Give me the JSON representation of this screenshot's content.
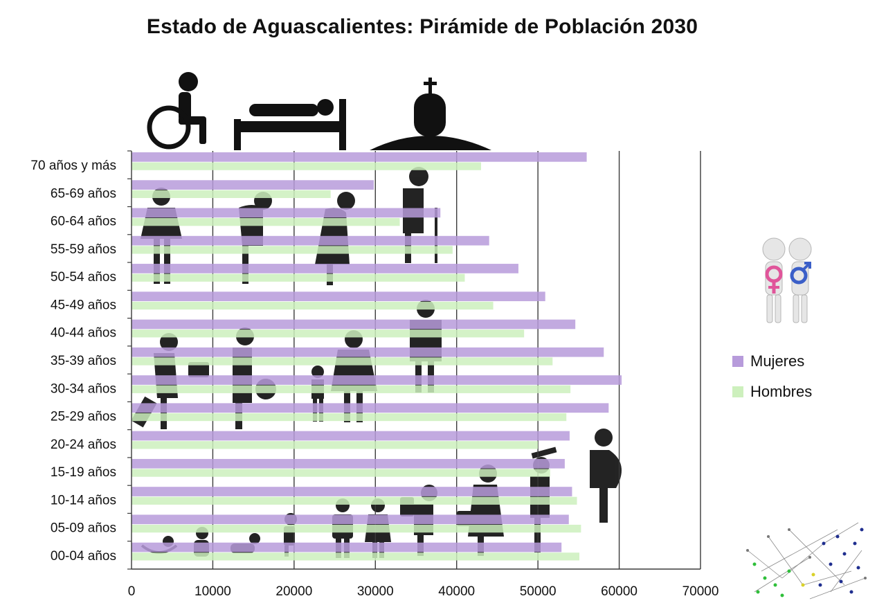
{
  "title": "Estado de Aguascalientes: Pirámide de Población 2030",
  "legend": {
    "mujeres": "Mujeres",
    "hombres": "Hombres"
  },
  "colors": {
    "mujeres": "#b79bdb",
    "hombres": "#cdf0bd",
    "grid": "#3a3a3a"
  },
  "chart_data": {
    "type": "bar",
    "orientation": "horizontal",
    "title": "Estado de Aguascalientes: Pirámide de Población 2030",
    "xlim": [
      0,
      70000
    ],
    "xticks": [
      "0",
      "10000",
      "20000",
      "30000",
      "40000",
      "50000",
      "60000",
      "70000"
    ],
    "xtick_values": [
      0,
      10000,
      20000,
      30000,
      40000,
      50000,
      60000,
      70000
    ],
    "categories": [
      "70 años y más",
      "65-69 años",
      "60-64 años",
      "55-59 años",
      "50-54 años",
      "45-49 años",
      "40-44 años",
      "35-39 años",
      "30-34 años",
      "25-29 años",
      "20-24 años",
      "15-19 años",
      "10-14 años",
      "05-09 años",
      "00-04 años"
    ],
    "series": [
      {
        "name": "Mujeres",
        "values": [
          56000,
          29800,
          38000,
          44000,
          47600,
          50900,
          54600,
          58100,
          60300,
          58700,
          53900,
          53300,
          54200,
          53800,
          52900
        ]
      },
      {
        "name": "Hombres",
        "values": [
          43000,
          24500,
          33000,
          39500,
          41000,
          44500,
          48300,
          51800,
          54000,
          53500,
          50000,
          51500,
          54800,
          55300,
          55100
        ]
      }
    ],
    "legend_position": "right"
  }
}
